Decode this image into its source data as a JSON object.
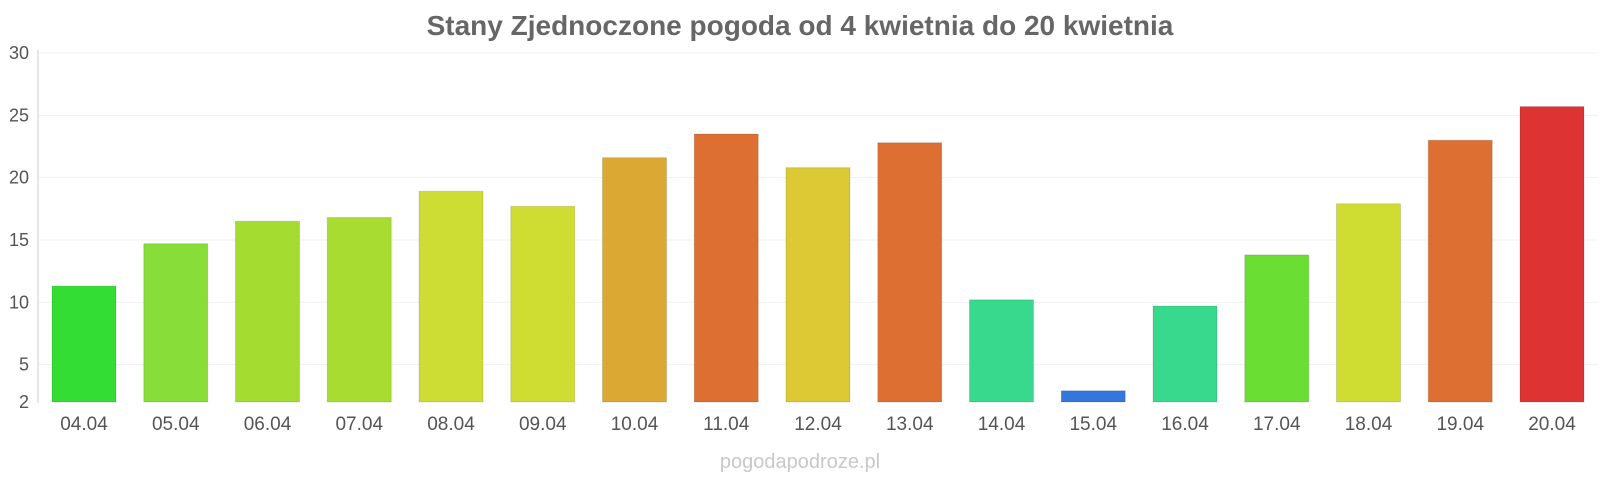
{
  "chart_data": {
    "type": "bar",
    "title": "Stany Zjednoczone pogoda od 4 kwietnia do 20 kwietnia",
    "categories": [
      "04.04",
      "05.04",
      "06.04",
      "07.04",
      "08.04",
      "09.04",
      "10.04",
      "11.04",
      "12.04",
      "13.04",
      "14.04",
      "15.04",
      "16.04",
      "17.04",
      "18.04",
      "19.04",
      "20.04"
    ],
    "values": [
      11.3,
      14.7,
      16.5,
      16.8,
      18.9,
      17.7,
      21.6,
      23.5,
      20.8,
      22.8,
      10.2,
      2.9,
      9.7,
      13.8,
      17.9,
      23.0,
      25.7
    ],
    "colors": [
      "#33dd33",
      "#88dd38",
      "#a5dc30",
      "#a8dc30",
      "#cddd33",
      "#cfdd33",
      "#dba833",
      "#dd6f33",
      "#dcc933",
      "#dd6f33",
      "#38d98c",
      "#3377dd",
      "#38d98c",
      "#6ade33",
      "#cfdd33",
      "#dd6f33",
      "#dd3333"
    ],
    "ylim": [
      2,
      30
    ],
    "yticks": [
      2,
      5,
      10,
      15,
      20,
      25,
      30
    ],
    "grid": true,
    "legend": "none"
  },
  "watermark": "pogodapodroze.pl"
}
